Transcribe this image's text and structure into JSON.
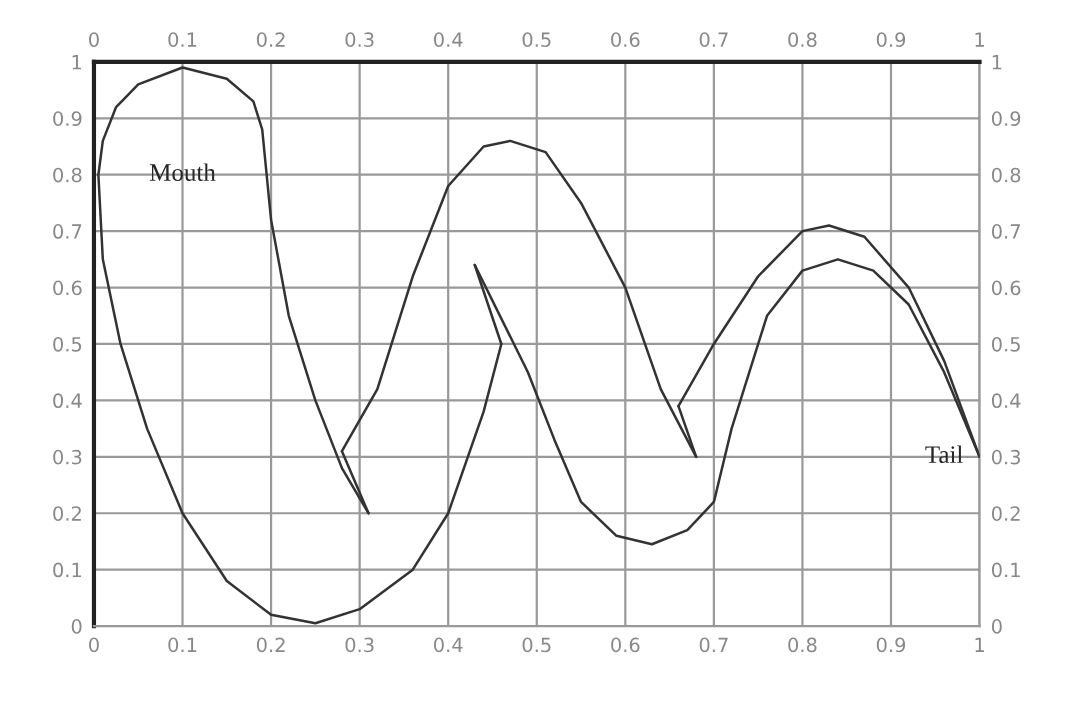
{
  "chart_data": {
    "type": "line",
    "series": [
      {
        "color": "#333333",
        "x": [
          0.46,
          0.44,
          0.4,
          0.36,
          0.3,
          0.25,
          0.2,
          0.15,
          0.1,
          0.06,
          0.03,
          0.01,
          0.005,
          0.01,
          0.025,
          0.05,
          0.1,
          0.15,
          0.18,
          0.19,
          0.2,
          0.22,
          0.25,
          0.28,
          0.31
        ],
        "values": [
          0.5,
          0.38,
          0.2,
          0.1,
          0.03,
          0.005,
          0.02,
          0.08,
          0.2,
          0.35,
          0.5,
          0.65,
          0.8,
          0.86,
          0.92,
          0.96,
          0.99,
          0.97,
          0.93,
          0.88,
          0.72,
          0.55,
          0.4,
          0.28,
          0.2
        ]
      },
      {
        "color": "#333333",
        "x": [
          0.28,
          0.31
        ],
        "values": [
          0.31,
          0.2
        ]
      },
      {
        "color": "#333333",
        "x": [
          0.28,
          0.32,
          0.36,
          0.4,
          0.44,
          0.47,
          0.51,
          0.55,
          0.6,
          0.64,
          0.68
        ],
        "values": [
          0.31,
          0.42,
          0.62,
          0.78,
          0.85,
          0.86,
          0.84,
          0.75,
          0.6,
          0.42,
          0.3
        ]
      },
      {
        "color": "#333333",
        "x": [
          0.66,
          0.68
        ],
        "values": [
          0.39,
          0.3
        ]
      },
      {
        "color": "#333333",
        "x": [
          0.66,
          0.7,
          0.75,
          0.8,
          0.83,
          0.87,
          0.92,
          0.96,
          1.0
        ],
        "values": [
          0.39,
          0.5,
          0.62,
          0.7,
          0.71,
          0.69,
          0.6,
          0.47,
          0.3
        ]
      },
      {
        "color": "#333333",
        "x": [
          0.43,
          0.49,
          0.52,
          0.55,
          0.59,
          0.63,
          0.67,
          0.7,
          0.72,
          0.76,
          0.8,
          0.84,
          0.88,
          0.92,
          0.96,
          1.0
        ],
        "values": [
          0.64,
          0.45,
          0.33,
          0.22,
          0.16,
          0.145,
          0.17,
          0.22,
          0.35,
          0.55,
          0.63,
          0.65,
          0.63,
          0.57,
          0.45,
          0.3
        ]
      },
      {
        "color": "#333333",
        "x": [
          0.43,
          0.46
        ],
        "values": [
          0.64,
          0.5
        ]
      }
    ],
    "annotations": [
      "Mouth",
      "Tail"
    ],
    "xlim": [
      0,
      1
    ],
    "xticks": [
      0,
      0.1,
      0.2,
      0.3,
      0.4,
      0.5,
      0.6,
      0.7,
      0.8,
      0.9,
      1
    ],
    "ylim": [
      0,
      1
    ],
    "yticks": [
      0,
      0.1,
      0.2,
      0.3,
      0.4,
      0.5,
      0.6,
      0.7,
      0.8,
      0.9,
      1
    ],
    "x2lim": [
      0,
      1
    ],
    "x2ticks": [
      0,
      0.1,
      0.2,
      0.3,
      0.4,
      0.5,
      0.6,
      0.7,
      0.8,
      0.9,
      1
    ],
    "y2lim": [
      0,
      1
    ],
    "y2ticks": [
      0,
      0.1,
      0.2,
      0.3,
      0.4,
      0.5,
      0.6,
      0.7,
      0.8,
      0.9,
      1
    ],
    "grid": true,
    "marker": "none",
    "line_style": "solid",
    "legend": false
  }
}
